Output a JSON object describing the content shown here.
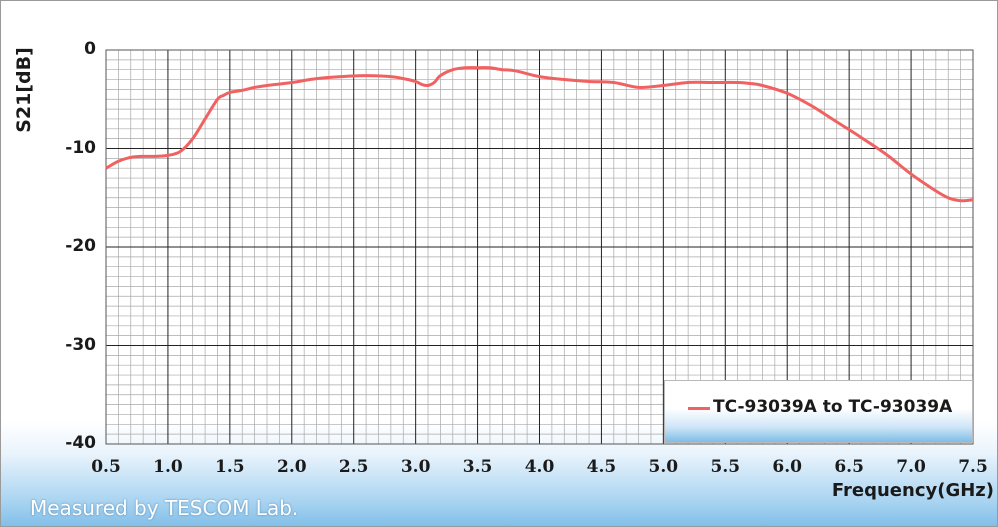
{
  "chart_data": {
    "type": "line",
    "title": "",
    "xlabel": "Frequency(GHz)",
    "ylabel": "S21[dB]",
    "xlim": [
      0.5,
      7.5
    ],
    "ylim": [
      -40,
      0
    ],
    "x_ticks": [
      "0.5",
      "1.0",
      "1.5",
      "2.0",
      "2.5",
      "3.0",
      "3.5",
      "4.0",
      "4.5",
      "5.0",
      "5.5",
      "6.0",
      "6.5",
      "7.0",
      "7.5"
    ],
    "y_ticks": [
      "0",
      "-10",
      "-20",
      "-30",
      "-40"
    ],
    "grid": true,
    "legend_position": "bottom-right",
    "series": [
      {
        "name": "TC-93039A to TC-93039A",
        "color": "#f06262",
        "x": [
          0.5,
          0.6,
          0.7,
          0.8,
          0.9,
          1.0,
          1.1,
          1.2,
          1.3,
          1.4,
          1.45,
          1.5,
          1.6,
          1.7,
          1.8,
          2.0,
          2.2,
          2.4,
          2.6,
          2.8,
          2.9,
          3.0,
          3.05,
          3.1,
          3.15,
          3.2,
          3.3,
          3.4,
          3.5,
          3.6,
          3.7,
          3.8,
          4.0,
          4.2,
          4.4,
          4.6,
          4.8,
          5.0,
          5.2,
          5.4,
          5.6,
          5.7,
          5.8,
          6.0,
          6.2,
          6.4,
          6.6,
          6.8,
          7.0,
          7.2,
          7.3,
          7.4,
          7.5
        ],
        "y": [
          -12.0,
          -11.3,
          -10.9,
          -10.8,
          -10.8,
          -10.7,
          -10.3,
          -9.0,
          -7.0,
          -5.0,
          -4.6,
          -4.3,
          -4.1,
          -3.8,
          -3.6,
          -3.3,
          -2.9,
          -2.7,
          -2.6,
          -2.7,
          -2.9,
          -3.2,
          -3.5,
          -3.6,
          -3.3,
          -2.6,
          -2.0,
          -1.8,
          -1.8,
          -1.8,
          -2.0,
          -2.1,
          -2.7,
          -3.0,
          -3.2,
          -3.3,
          -3.8,
          -3.6,
          -3.3,
          -3.3,
          -3.3,
          -3.4,
          -3.6,
          -4.4,
          -5.7,
          -7.3,
          -8.9,
          -10.6,
          -12.6,
          -14.3,
          -15.0,
          -15.3,
          -15.2
        ]
      }
    ]
  },
  "footer_note": "Measured by TESCOM Lab."
}
